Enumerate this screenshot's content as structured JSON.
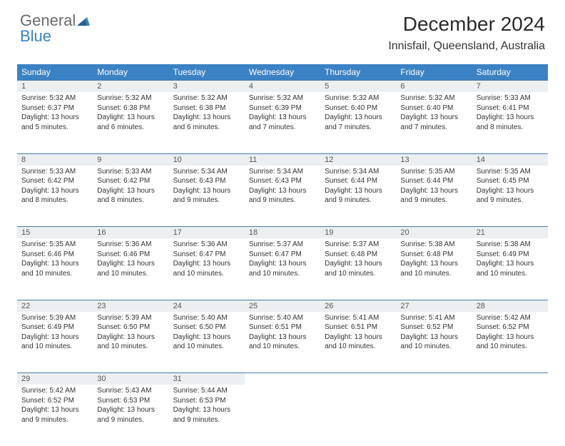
{
  "logo": {
    "word1": "General",
    "word2": "Blue"
  },
  "title": "December 2024",
  "location": "Innisfail, Queensland, Australia",
  "colors": {
    "header_bg": "#3b82c4",
    "daynum_bg": "#eceff1",
    "row_divider": "#4a7aa8",
    "page_bg": "#ffffff",
    "text": "#333333"
  },
  "weekdays": [
    "Sunday",
    "Monday",
    "Tuesday",
    "Wednesday",
    "Thursday",
    "Friday",
    "Saturday"
  ],
  "weeks": [
    [
      {
        "n": "1",
        "sr": "5:32 AM",
        "ss": "6:37 PM",
        "dl": "13 hours and 5 minutes."
      },
      {
        "n": "2",
        "sr": "5:32 AM",
        "ss": "6:38 PM",
        "dl": "13 hours and 6 minutes."
      },
      {
        "n": "3",
        "sr": "5:32 AM",
        "ss": "6:38 PM",
        "dl": "13 hours and 6 minutes."
      },
      {
        "n": "4",
        "sr": "5:32 AM",
        "ss": "6:39 PM",
        "dl": "13 hours and 7 minutes."
      },
      {
        "n": "5",
        "sr": "5:32 AM",
        "ss": "6:40 PM",
        "dl": "13 hours and 7 minutes."
      },
      {
        "n": "6",
        "sr": "5:32 AM",
        "ss": "6:40 PM",
        "dl": "13 hours and 7 minutes."
      },
      {
        "n": "7",
        "sr": "5:33 AM",
        "ss": "6:41 PM",
        "dl": "13 hours and 8 minutes."
      }
    ],
    [
      {
        "n": "8",
        "sr": "5:33 AM",
        "ss": "6:42 PM",
        "dl": "13 hours and 8 minutes."
      },
      {
        "n": "9",
        "sr": "5:33 AM",
        "ss": "6:42 PM",
        "dl": "13 hours and 8 minutes."
      },
      {
        "n": "10",
        "sr": "5:34 AM",
        "ss": "6:43 PM",
        "dl": "13 hours and 9 minutes."
      },
      {
        "n": "11",
        "sr": "5:34 AM",
        "ss": "6:43 PM",
        "dl": "13 hours and 9 minutes."
      },
      {
        "n": "12",
        "sr": "5:34 AM",
        "ss": "6:44 PM",
        "dl": "13 hours and 9 minutes."
      },
      {
        "n": "13",
        "sr": "5:35 AM",
        "ss": "6:44 PM",
        "dl": "13 hours and 9 minutes."
      },
      {
        "n": "14",
        "sr": "5:35 AM",
        "ss": "6:45 PM",
        "dl": "13 hours and 9 minutes."
      }
    ],
    [
      {
        "n": "15",
        "sr": "5:35 AM",
        "ss": "6:46 PM",
        "dl": "13 hours and 10 minutes."
      },
      {
        "n": "16",
        "sr": "5:36 AM",
        "ss": "6:46 PM",
        "dl": "13 hours and 10 minutes."
      },
      {
        "n": "17",
        "sr": "5:36 AM",
        "ss": "6:47 PM",
        "dl": "13 hours and 10 minutes."
      },
      {
        "n": "18",
        "sr": "5:37 AM",
        "ss": "6:47 PM",
        "dl": "13 hours and 10 minutes."
      },
      {
        "n": "19",
        "sr": "5:37 AM",
        "ss": "6:48 PM",
        "dl": "13 hours and 10 minutes."
      },
      {
        "n": "20",
        "sr": "5:38 AM",
        "ss": "6:48 PM",
        "dl": "13 hours and 10 minutes."
      },
      {
        "n": "21",
        "sr": "5:38 AM",
        "ss": "6:49 PM",
        "dl": "13 hours and 10 minutes."
      }
    ],
    [
      {
        "n": "22",
        "sr": "5:39 AM",
        "ss": "6:49 PM",
        "dl": "13 hours and 10 minutes."
      },
      {
        "n": "23",
        "sr": "5:39 AM",
        "ss": "6:50 PM",
        "dl": "13 hours and 10 minutes."
      },
      {
        "n": "24",
        "sr": "5:40 AM",
        "ss": "6:50 PM",
        "dl": "13 hours and 10 minutes."
      },
      {
        "n": "25",
        "sr": "5:40 AM",
        "ss": "6:51 PM",
        "dl": "13 hours and 10 minutes."
      },
      {
        "n": "26",
        "sr": "5:41 AM",
        "ss": "6:51 PM",
        "dl": "13 hours and 10 minutes."
      },
      {
        "n": "27",
        "sr": "5:41 AM",
        "ss": "6:52 PM",
        "dl": "13 hours and 10 minutes."
      },
      {
        "n": "28",
        "sr": "5:42 AM",
        "ss": "6:52 PM",
        "dl": "13 hours and 10 minutes."
      }
    ],
    [
      {
        "n": "29",
        "sr": "5:42 AM",
        "ss": "6:52 PM",
        "dl": "13 hours and 9 minutes."
      },
      {
        "n": "30",
        "sr": "5:43 AM",
        "ss": "6:53 PM",
        "dl": "13 hours and 9 minutes."
      },
      {
        "n": "31",
        "sr": "5:44 AM",
        "ss": "6:53 PM",
        "dl": "13 hours and 9 minutes."
      },
      null,
      null,
      null,
      null
    ]
  ],
  "labels": {
    "sunrise": "Sunrise:",
    "sunset": "Sunset:",
    "daylight": "Daylight:"
  }
}
